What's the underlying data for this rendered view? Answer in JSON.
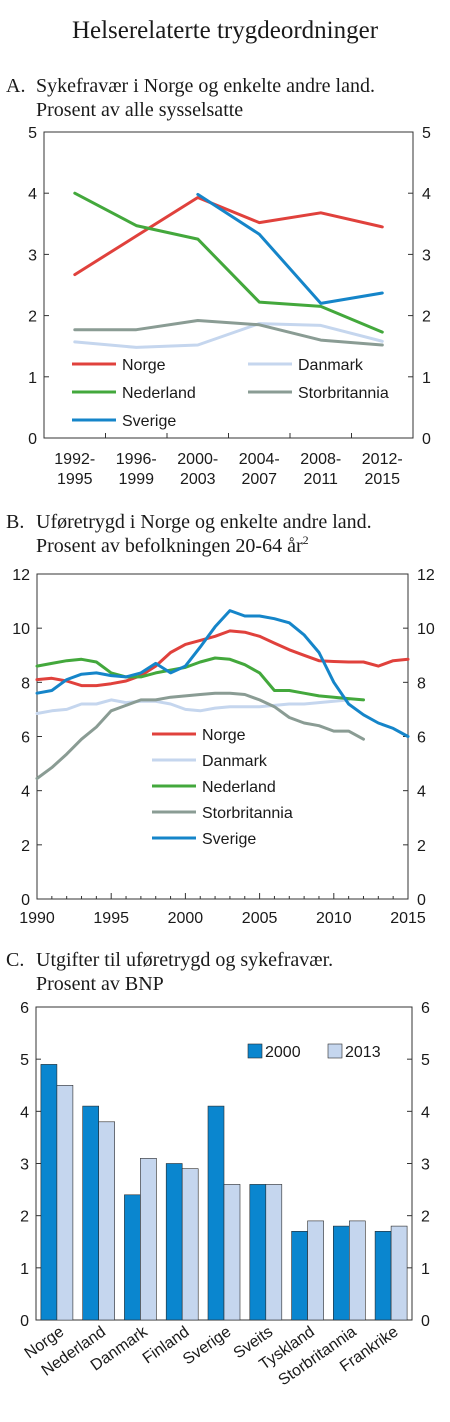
{
  "page": {
    "title": "Helserelaterte trygdeordninger"
  },
  "chart_data": [
    {
      "id": "A",
      "type": "line",
      "panel_letter": "A.",
      "title_line1": "Sykefravær i Norge og enkelte andre land.",
      "title_line2": "Prosent av alle sysselsatte",
      "categories": [
        "1992-\n1995",
        "1996-\n1999",
        "2000-\n2003",
        "2004-\n2007",
        "2008-\n2011",
        "2012-\n2015"
      ],
      "ylim": [
        0,
        5
      ],
      "yticks": [
        "0",
        "1",
        "2",
        "3",
        "4",
        "5"
      ],
      "legend_position": "bottom-inside",
      "series": [
        {
          "name": "Norge",
          "color": "#e0413c",
          "values": [
            2.67,
            3.3,
            3.93,
            3.52,
            3.68,
            3.45
          ]
        },
        {
          "name": "Danmark",
          "color": "#c5d6ee",
          "values": [
            1.57,
            1.48,
            1.52,
            1.87,
            1.84,
            1.58
          ]
        },
        {
          "name": "Nederland",
          "color": "#43a83c",
          "values": [
            4.0,
            3.47,
            3.25,
            2.22,
            2.15,
            1.73
          ]
        },
        {
          "name": "Storbritannia",
          "color": "#8a9c94",
          "values": [
            1.77,
            1.77,
            1.92,
            1.85,
            1.6,
            1.52
          ]
        },
        {
          "name": "Sverige",
          "color": "#1585c9",
          "values": [
            null,
            null,
            3.98,
            3.33,
            2.2,
            2.37
          ]
        }
      ]
    },
    {
      "id": "B",
      "type": "line",
      "panel_letter": "B.",
      "title_line1": "Uføretrygd i Norge og enkelte andre land.",
      "title_line2": "Prosent av befolkningen 20-64 år",
      "title_sup": "2",
      "x": [
        1990,
        1991,
        1992,
        1993,
        1994,
        1995,
        1996,
        1997,
        1998,
        1999,
        2000,
        2001,
        2002,
        2003,
        2004,
        2005,
        2006,
        2007,
        2008,
        2009,
        2010,
        2011,
        2012,
        2013,
        2014,
        2015
      ],
      "xlim": [
        1990,
        2015
      ],
      "xticks": [
        "1990",
        "1995",
        "2000",
        "2005",
        "2010",
        "2015"
      ],
      "ylim": [
        0,
        12
      ],
      "yticks": [
        "0",
        "2",
        "4",
        "6",
        "8",
        "10",
        "12"
      ],
      "legend_position": "bottom-center",
      "series": [
        {
          "name": "Norge",
          "color": "#e0413c",
          "values": [
            8.1,
            8.15,
            8.05,
            7.88,
            7.88,
            7.95,
            8.05,
            8.25,
            8.6,
            9.1,
            9.4,
            9.55,
            9.7,
            9.9,
            9.85,
            9.7,
            9.45,
            9.2,
            9.0,
            8.8,
            8.77,
            8.75,
            8.75,
            8.6,
            8.8,
            8.85
          ]
        },
        {
          "name": "Danmark",
          "color": "#c5d6ee",
          "values": [
            6.85,
            6.95,
            7.0,
            7.2,
            7.2,
            7.35,
            7.25,
            7.3,
            7.3,
            7.2,
            7.0,
            6.95,
            7.05,
            7.1,
            7.1,
            7.1,
            7.15,
            7.2,
            7.2,
            7.25,
            7.3,
            7.35,
            null,
            null,
            null,
            null
          ]
        },
        {
          "name": "Nederland",
          "color": "#43a83c",
          "values": [
            8.6,
            8.7,
            8.8,
            8.85,
            8.75,
            8.35,
            8.2,
            8.2,
            8.35,
            8.45,
            8.55,
            8.75,
            8.9,
            8.85,
            8.65,
            8.35,
            7.7,
            7.7,
            7.6,
            7.5,
            7.45,
            7.4,
            7.35,
            null,
            null,
            null
          ]
        },
        {
          "name": "Storbritannia",
          "color": "#8a9c94",
          "values": [
            4.45,
            4.85,
            5.35,
            5.9,
            6.35,
            6.95,
            7.15,
            7.35,
            7.35,
            7.45,
            7.5,
            7.55,
            7.6,
            7.6,
            7.55,
            7.35,
            7.1,
            6.7,
            6.5,
            6.4,
            6.2,
            6.2,
            5.9,
            null,
            null,
            null
          ]
        },
        {
          "name": "Sverige",
          "color": "#1585c9",
          "values": [
            7.6,
            7.7,
            8.1,
            8.3,
            8.35,
            8.25,
            8.2,
            8.35,
            8.7,
            8.35,
            8.6,
            9.3,
            10.05,
            10.65,
            10.45,
            10.45,
            10.35,
            10.2,
            9.75,
            9.1,
            8.0,
            7.2,
            6.8,
            6.5,
            6.3,
            6.0
          ]
        }
      ]
    },
    {
      "id": "C",
      "type": "bar",
      "panel_letter": "C.",
      "title_line1": "Utgifter til uføretrygd og sykefravær.",
      "title_line2": "Prosent av BNP",
      "categories": [
        "Norge",
        "Nederland",
        "Danmark",
        "Finland",
        "Sverige",
        "Sveits",
        "Tyskland",
        "Storbritannia",
        "Frankrike"
      ],
      "ylim": [
        0,
        6
      ],
      "yticks": [
        "0",
        "1",
        "2",
        "3",
        "4",
        "5",
        "6"
      ],
      "legend_position": "top-right",
      "series": [
        {
          "name": "2000",
          "color": "#0a86cf",
          "values": [
            4.9,
            4.1,
            2.4,
            3.0,
            4.1,
            2.6,
            1.7,
            1.8,
            1.7
          ]
        },
        {
          "name": "2013",
          "color": "#c5d6ee",
          "values": [
            4.5,
            3.8,
            3.1,
            2.9,
            2.6,
            2.6,
            1.9,
            1.9,
            1.8
          ]
        }
      ]
    }
  ]
}
